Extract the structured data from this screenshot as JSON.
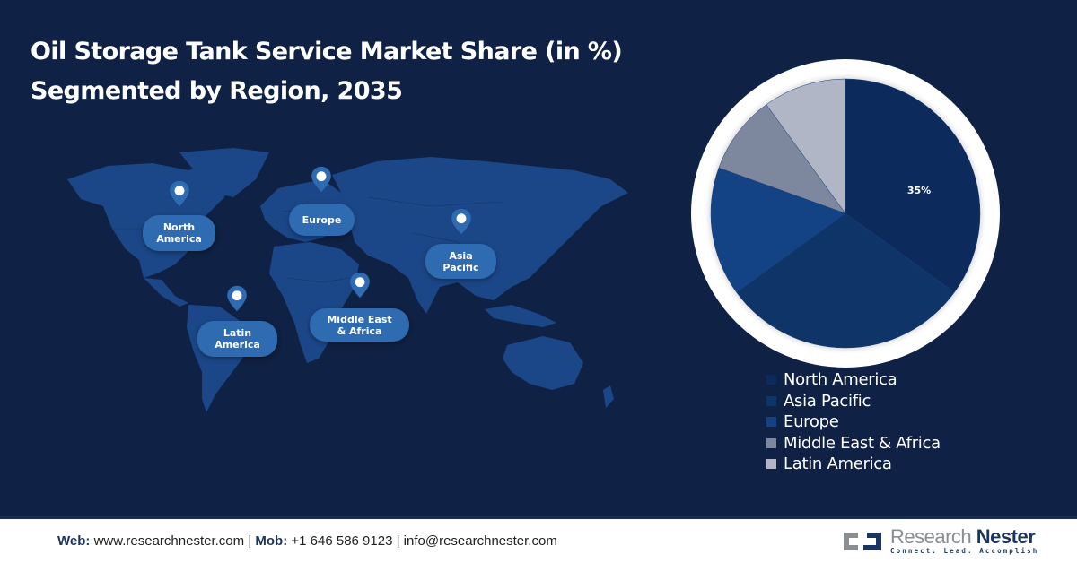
{
  "header": {
    "title_line1": "Oil Storage Tank Service Market Share (in %)",
    "title_line2": "Segmented by Region, 2035"
  },
  "map": {
    "pins": [
      {
        "label_line1": "North",
        "label_line2": "America"
      },
      {
        "label_line1": "Europe",
        "label_line2": ""
      },
      {
        "label_line1": "Asia",
        "label_line2": "Pacific"
      },
      {
        "label_line1": "Latin",
        "label_line2": "America"
      },
      {
        "label_line1": "Middle East",
        "label_line2": "& Africa"
      }
    ]
  },
  "chart_data": {
    "type": "pie",
    "title": "Oil Storage Tank Service Market Share (in %) Segmented by Region, 2035",
    "categories": [
      "North America",
      "Asia Pacific",
      "Europe",
      "Middle East & Africa",
      "Latin America"
    ],
    "values": [
      35,
      30,
      15.5,
      9.5,
      10
    ],
    "data_labels": [
      "35%",
      "",
      "",
      "",
      ""
    ],
    "colors": [
      "#0d2a5c",
      "#0f3468",
      "#134384",
      "#7d879e",
      "#b0b6c6"
    ],
    "start_angle": 0,
    "direction": "clockwise",
    "legend_position": "bottom-right"
  },
  "legend": {
    "items": [
      {
        "label": "North America",
        "color": "#0d2a5c"
      },
      {
        "label": "Asia Pacific",
        "color": "#0f3468"
      },
      {
        "label": "Europe",
        "color": "#134384"
      },
      {
        "label": "Middle East & Africa",
        "color": "#7d879e"
      },
      {
        "label": "Latin America",
        "color": "#b0b6c6"
      }
    ]
  },
  "footer": {
    "web_label": "Web:",
    "web_value": "www.researchnester.com",
    "mob_label": "Mob:",
    "mob_value": "+1 646 586 9123",
    "email": "info@researchnester.com",
    "separator": "|",
    "logo_name_part1": "Research",
    "logo_name_part2": "Nester",
    "logo_tagline": "Connect. Lead. Accomplish"
  }
}
